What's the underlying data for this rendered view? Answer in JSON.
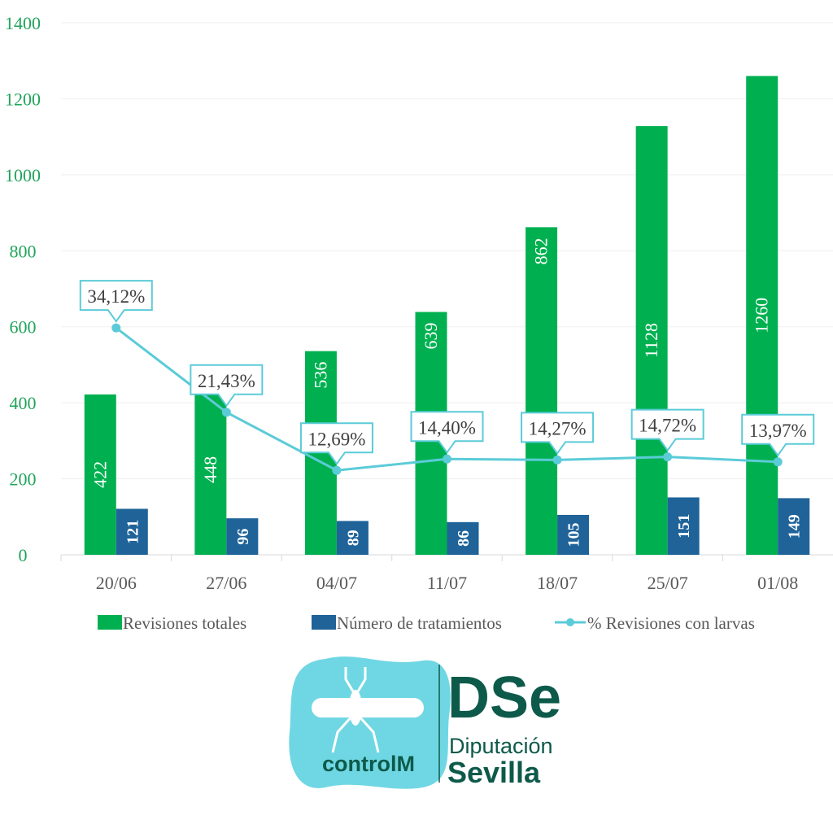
{
  "chart_data": {
    "type": "bar",
    "categories": [
      "20/06",
      "27/06",
      "04/07",
      "11/07",
      "18/07",
      "25/07",
      "01/08"
    ],
    "series": [
      {
        "name": "Revisiones totales",
        "type": "bar",
        "color": "#00b050",
        "values": [
          422,
          448,
          536,
          639,
          862,
          1128,
          1260
        ],
        "labels": [
          "422",
          "448",
          "536",
          "639",
          "862",
          "1128",
          "1260"
        ]
      },
      {
        "name": "Número de tratamientos",
        "type": "bar",
        "color": "#1f6399",
        "values": [
          121,
          96,
          89,
          86,
          105,
          151,
          149
        ],
        "labels": [
          "121",
          "96",
          "89",
          "86",
          "105",
          "151",
          "149"
        ]
      },
      {
        "name": "% Revisiones con larvas",
        "type": "line",
        "axis": "secondary",
        "secondary_ylim": [
          0,
          80
        ],
        "color": "#5bcbd8",
        "values": [
          34.12,
          21.43,
          12.69,
          14.4,
          14.27,
          14.72,
          13.97
        ],
        "labels": [
          "34,12%",
          "21,43%",
          "12,69%",
          "14,40%",
          "14,27%",
          "14,72%",
          "13,97%"
        ]
      }
    ],
    "ylim": [
      0,
      1400
    ],
    "yticks": [
      "0",
      "200",
      "400",
      "600",
      "800",
      "1000",
      "1200",
      "1400"
    ],
    "grid": true,
    "legend": "bottom"
  },
  "logos": {
    "left": "controlM",
    "right_top": "Diputación",
    "right_bottom": "Sevilla",
    "right_mark": "DSe"
  }
}
